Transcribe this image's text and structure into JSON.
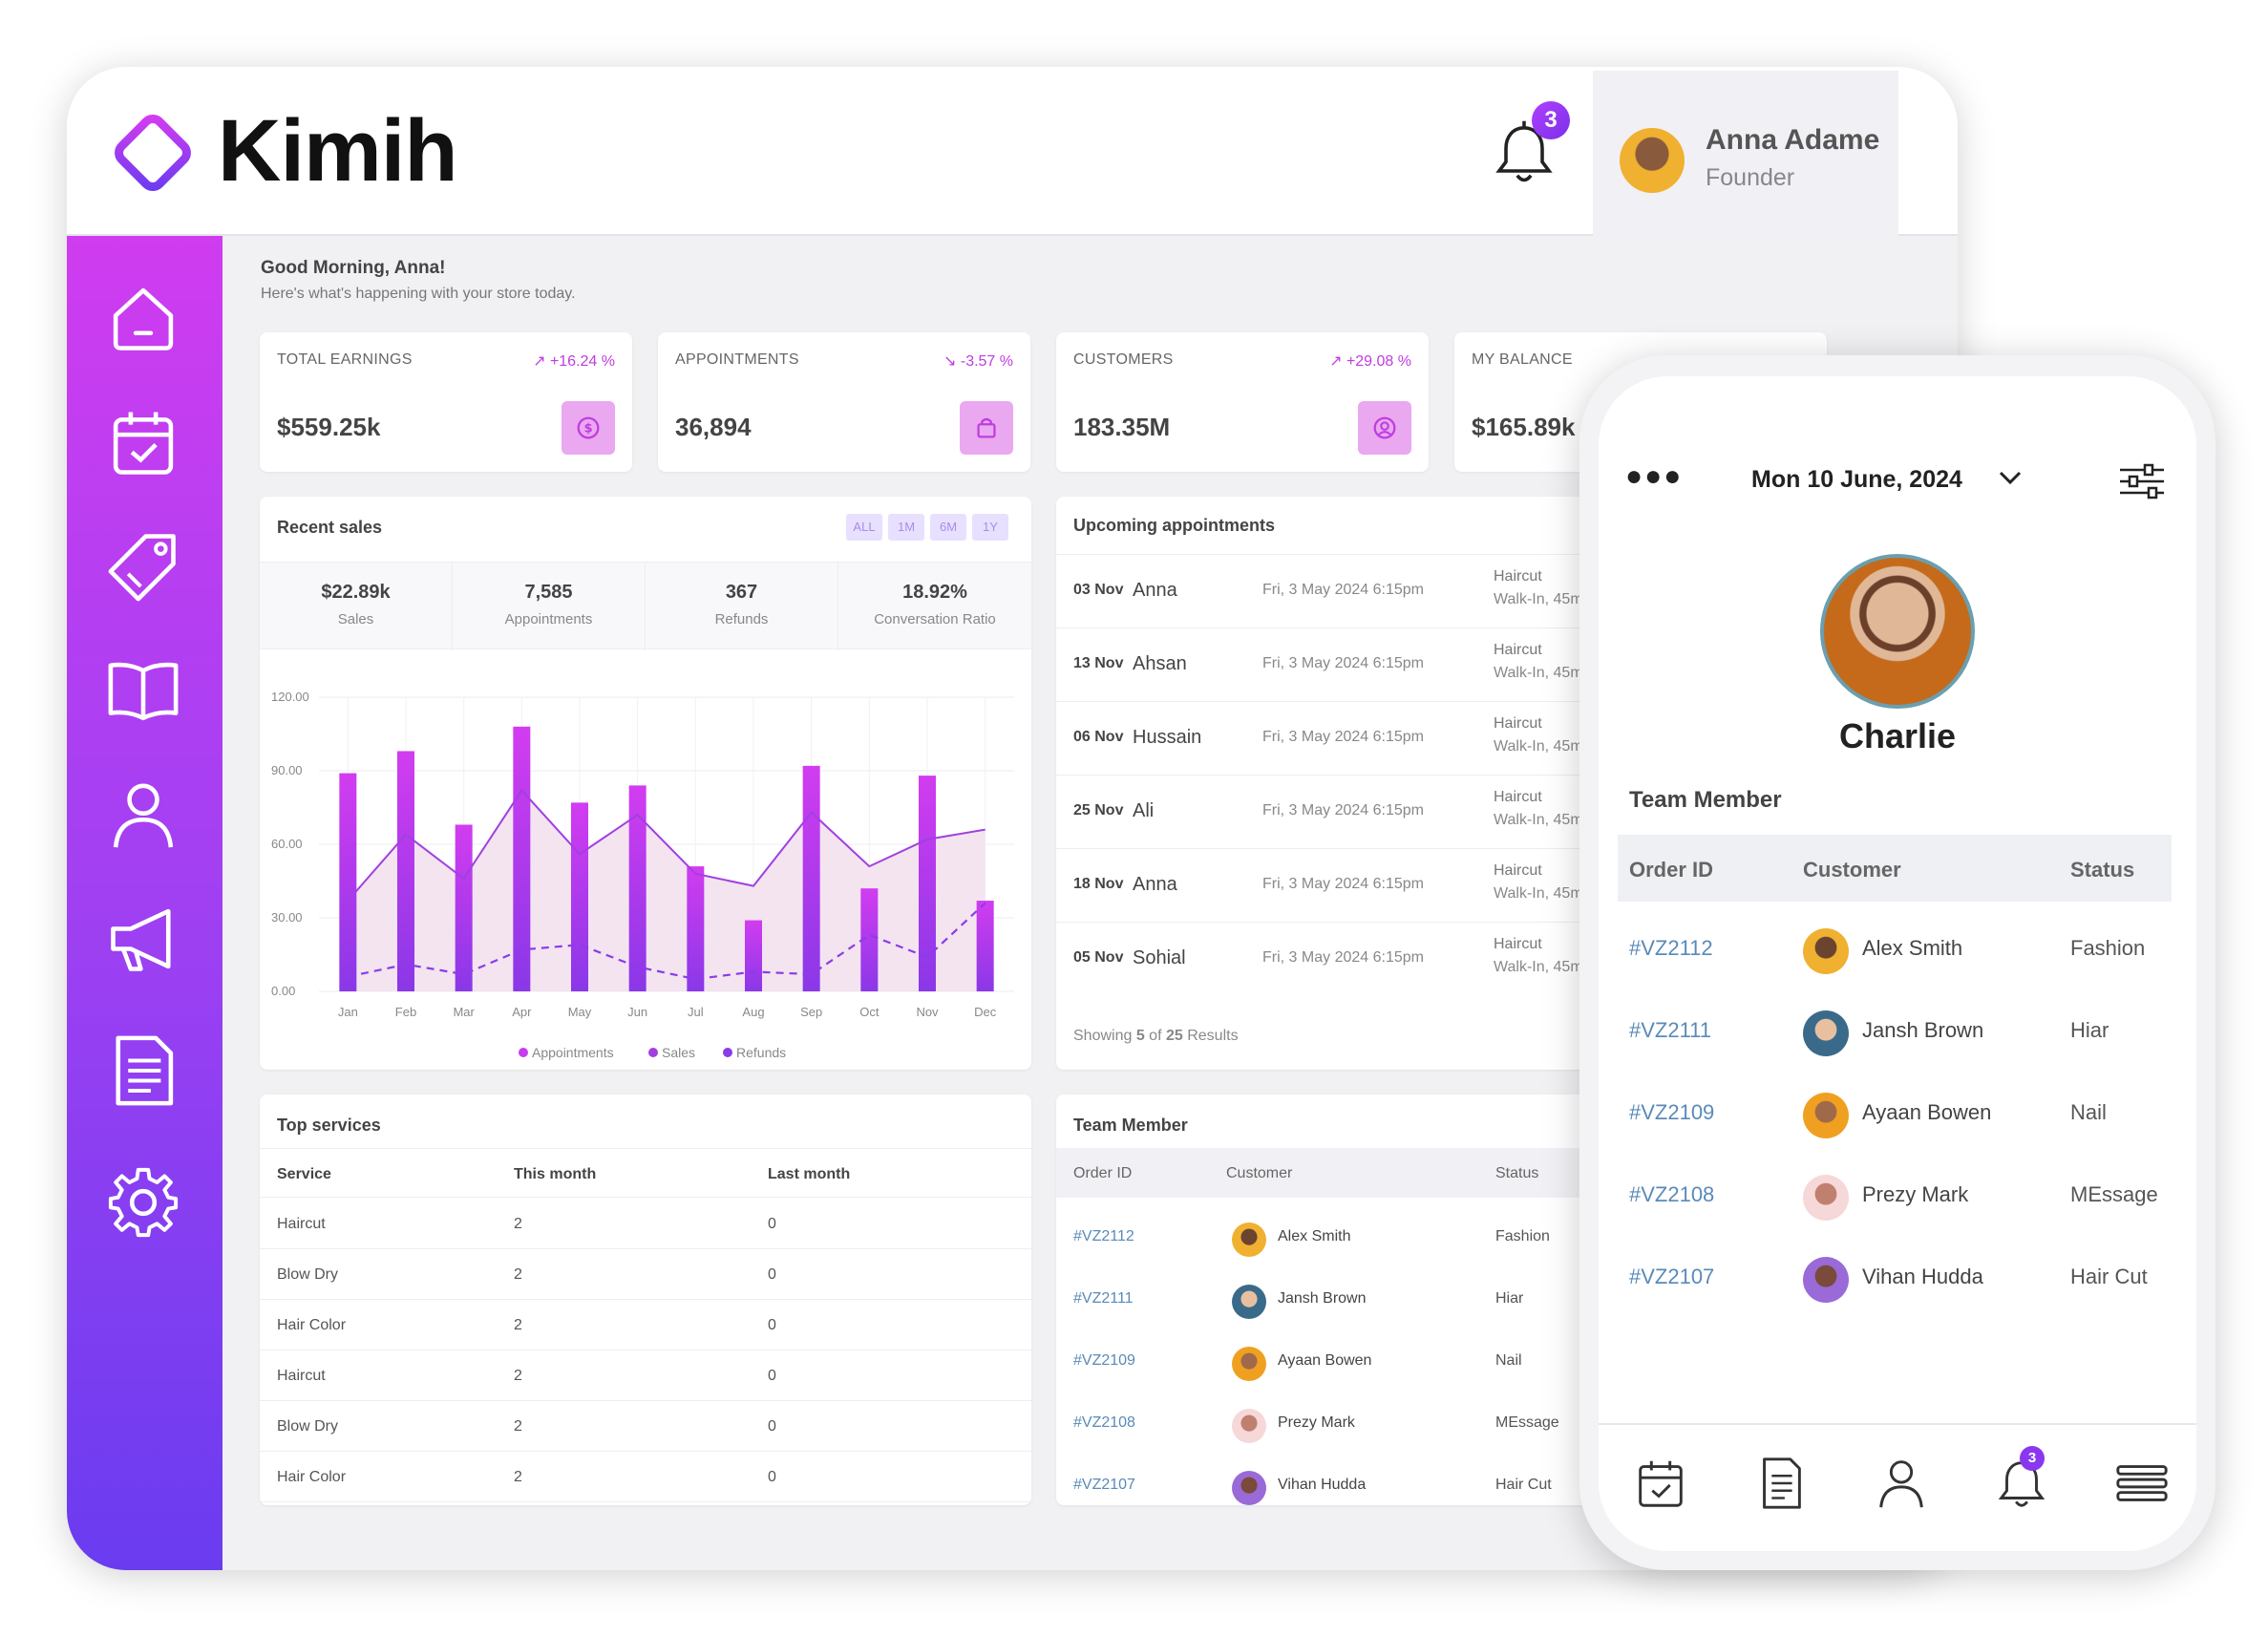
{
  "brand": {
    "name": "Kimih",
    "accent": "#c63cf0",
    "accent_dark": "#6a3cf0"
  },
  "header": {
    "notification_count": "3",
    "user_name": "Anna Adame",
    "user_role": "Founder"
  },
  "sidebar": {
    "icons": [
      "home-icon",
      "calendar-icon",
      "tag-icon",
      "book-icon",
      "user-icon",
      "megaphone-icon",
      "document-icon",
      "gear-icon"
    ]
  },
  "greeting": {
    "title": "Good Morning, Anna!",
    "subtitle": "Here's what's happening with your store today."
  },
  "stats": [
    {
      "label": "TOTAL EARNINGS",
      "change": "+16.24 %",
      "value": "$559.25k",
      "icon": "dollar-icon"
    },
    {
      "label": "APPOINTMENTS",
      "change": "-3.57 %",
      "value": "36,894",
      "icon": "bag-icon"
    },
    {
      "label": "CUSTOMERS",
      "change": "+29.08 %",
      "value": "183.35M",
      "icon": "user-circle-icon"
    },
    {
      "label": "MY BALANCE",
      "change": "",
      "value": "$165.89k",
      "icon": ""
    }
  ],
  "recent_sales": {
    "title": "Recent sales",
    "ranges": [
      "ALL",
      "1M",
      "6M",
      "1Y"
    ],
    "summary": [
      {
        "value": "$22.89k",
        "label": "Sales"
      },
      {
        "value": "7,585",
        "label": "Appointments"
      },
      {
        "value": "367",
        "label": "Refunds"
      },
      {
        "value": "18.92%",
        "label": "Conversation Ratio"
      }
    ]
  },
  "chart_data": {
    "type": "bar",
    "categories": [
      "Jan",
      "Feb",
      "Mar",
      "Apr",
      "May",
      "Jun",
      "Jul",
      "Aug",
      "Sep",
      "Oct",
      "Nov",
      "Dec"
    ],
    "ylim": [
      0,
      120
    ],
    "yticks": [
      "0.00",
      "30.00",
      "60.00",
      "90.00",
      "120.00"
    ],
    "grid": true,
    "legend_position": "bottom",
    "series": [
      {
        "name": "Appointments",
        "type": "bar",
        "values": [
          89,
          98,
          68,
          108,
          77,
          84,
          51,
          29,
          92,
          42,
          88,
          37
        ]
      },
      {
        "name": "Sales",
        "type": "area",
        "values": [
          37,
          64,
          46,
          82,
          56,
          72,
          48,
          43,
          73,
          51,
          62,
          66
        ]
      },
      {
        "name": "Refunds",
        "type": "line-dashed",
        "values": [
          6,
          11,
          7,
          17,
          19,
          10,
          5,
          8,
          7,
          23,
          14,
          36
        ]
      }
    ],
    "colors": {
      "Appointments": "#c63cf0",
      "Sales": "#a040e0",
      "Refunds": "#8a3ce8"
    }
  },
  "upcoming": {
    "title": "Upcoming appointments",
    "rows": [
      {
        "date": "03 Nov",
        "name": "Anna",
        "time": "Fri, 3 May 2024 6:15pm",
        "service": "Haircut",
        "detail": "Walk-In, 45m"
      },
      {
        "date": "13 Nov",
        "name": "Ahsan",
        "time": "Fri, 3 May 2024 6:15pm",
        "service": "Haircut",
        "detail": "Walk-In, 45m"
      },
      {
        "date": "06 Nov",
        "name": "Hussain",
        "time": "Fri, 3 May 2024 6:15pm",
        "service": "Haircut",
        "detail": "Walk-In, 45m"
      },
      {
        "date": "25 Nov",
        "name": "Ali",
        "time": "Fri, 3 May 2024 6:15pm",
        "service": "Haircut",
        "detail": "Walk-In, 45m"
      },
      {
        "date": "18 Nov",
        "name": "Anna",
        "time": "Fri, 3 May 2024 6:15pm",
        "service": "Haircut",
        "detail": "Walk-In, 45m"
      },
      {
        "date": "05 Nov",
        "name": "Sohial",
        "time": "Fri, 3 May 2024 6:15pm",
        "service": "Haircut",
        "detail": "Walk-In, 45m"
      }
    ],
    "footer_prefix": "Showing ",
    "footer_shown": "5",
    "footer_mid": " of ",
    "footer_total": "25",
    "footer_suffix": " Results"
  },
  "top_services": {
    "title": "Top services",
    "columns": [
      "Service",
      "This month",
      "Last month"
    ],
    "rows": [
      [
        "Haircut",
        "2",
        "0"
      ],
      [
        "Blow Dry",
        "2",
        "0"
      ],
      [
        "Hair Color",
        "2",
        "0"
      ],
      [
        "Haircut",
        "2",
        "0"
      ],
      [
        "Blow Dry",
        "2",
        "0"
      ],
      [
        "Hair Color",
        "2",
        "0"
      ]
    ]
  },
  "team_tablet": {
    "title": "Team Member",
    "columns": [
      "Order ID",
      "Customer",
      "Status"
    ],
    "rows": [
      {
        "id": "#VZ2112",
        "customer": "Alex Smith",
        "status": "Fashion"
      },
      {
        "id": "#VZ2111",
        "customer": "Jansh Brown",
        "status": "Hiar"
      },
      {
        "id": "#VZ2109",
        "customer": "Ayaan Bowen",
        "status": "Nail"
      },
      {
        "id": "#VZ2108",
        "customer": "Prezy Mark",
        "status": "MEssage"
      },
      {
        "id": "#VZ2107",
        "customer": "Vihan Hudda",
        "status": "Hair Cut"
      }
    ]
  },
  "phone": {
    "date": "Mon 10 June, 2024",
    "profile_name": "Charlie",
    "section_title": "Team Member",
    "columns": [
      "Order ID",
      "Customer",
      "Status"
    ],
    "rows": [
      {
        "id": "#VZ2112",
        "customer": "Alex Smith",
        "status": "Fashion"
      },
      {
        "id": "#VZ2111",
        "customer": "Jansh Brown",
        "status": "Hiar"
      },
      {
        "id": "#VZ2109",
        "customer": "Ayaan Bowen",
        "status": "Nail"
      },
      {
        "id": "#VZ2108",
        "customer": "Prezy Mark",
        "status": "MEssage"
      },
      {
        "id": "#VZ2107",
        "customer": "Vihan Hudda",
        "status": "Hair Cut"
      }
    ],
    "nav_icons": [
      "calendar-icon",
      "document-icon",
      "user-icon",
      "bell-icon",
      "menu-icon"
    ],
    "nav_badge": "3"
  }
}
